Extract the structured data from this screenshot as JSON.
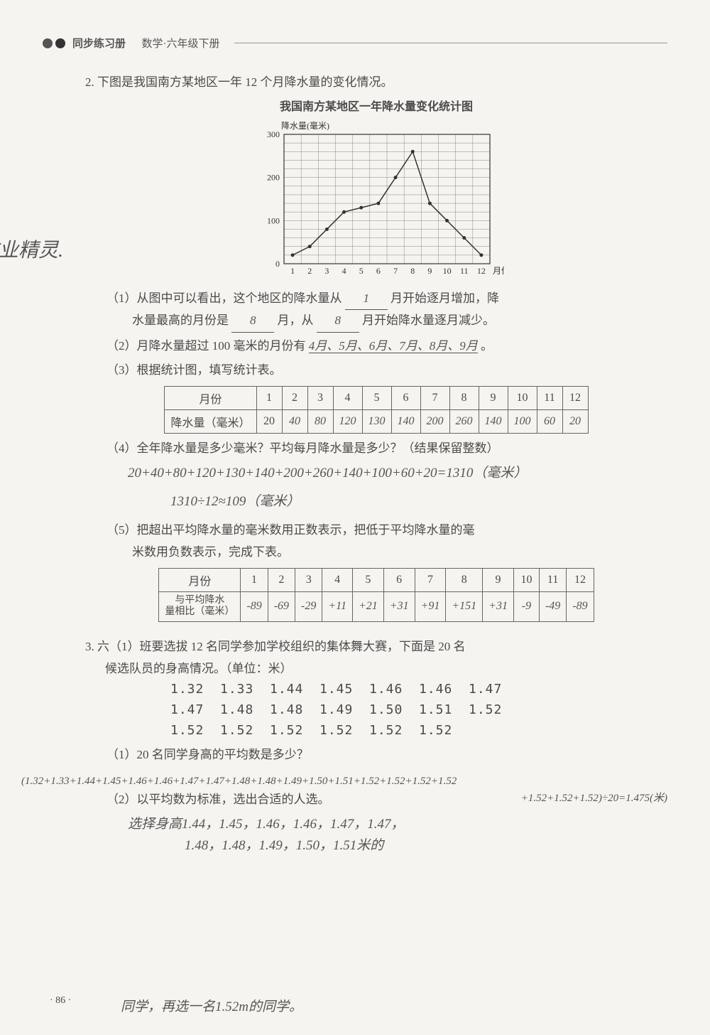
{
  "header": {
    "title_left": "同步练习册",
    "title_right": "数学·六年级下册"
  },
  "watermark_left": "作业精灵.",
  "page_number": "· 86 ·",
  "problem2": {
    "number": "2.",
    "prompt": "下图是我国南方某地区一年 12 个月降水量的变化情况。",
    "chart": {
      "title": "我国南方某地区一年降水量变化统计图",
      "y_label": "降水量(毫米)",
      "x_label": "月份",
      "type": "line",
      "x_categories": [
        "1",
        "2",
        "3",
        "4",
        "5",
        "6",
        "7",
        "8",
        "9",
        "10",
        "11",
        "12"
      ],
      "values": [
        20,
        40,
        80,
        120,
        130,
        140,
        200,
        260,
        140,
        100,
        60,
        20
      ],
      "ylim": [
        0,
        300
      ],
      "ytick_step": 100,
      "minor_grid_step_y": 20,
      "background_color": "#f5f4f0",
      "line_color": "#333333",
      "grid_color": "#888888",
      "axis_fontsize": 12
    },
    "q1": {
      "text_a": "（1）从图中可以看出，这个地区的降水量从",
      "ans_a": "1",
      "text_b": "月开始逐月增加，降",
      "text_c": "水量最高的月份是",
      "ans_c": "8",
      "text_d": "月，从",
      "ans_d": "8",
      "text_e": "月开始降水量逐月减少。"
    },
    "q2": {
      "text": "（2）月降水量超过 100 毫米的月份有",
      "ans": "4月、5月、6月、7月、8月、9月",
      "tail": "。"
    },
    "q3_text": "（3）根据统计图，填写统计表。",
    "table1": {
      "header_label": "月份",
      "row_label": "降水量（毫米）",
      "months": [
        "1",
        "2",
        "3",
        "4",
        "5",
        "6",
        "7",
        "8",
        "9",
        "10",
        "11",
        "12"
      ],
      "printed_first": "20",
      "values": [
        "40",
        "80",
        "120",
        "130",
        "140",
        "200",
        "260",
        "140",
        "100",
        "60",
        "20"
      ]
    },
    "q4": {
      "text": "（4）全年降水量是多少毫米？平均每月降水量是多少？（结果保留整数）",
      "calc1": "20+40+80+120+130+140+200+260+140+100+60+20=1310（毫米）",
      "calc2": "1310÷12≈109（毫米）"
    },
    "q5": {
      "text_a": "（5）把超出平均降水量的毫米数用正数表示，把低于平均降水量的毫",
      "text_b": "米数用负数表示，完成下表。",
      "table": {
        "header_label": "月份",
        "row_label": "与平均降水\n量相比（毫米）",
        "months": [
          "1",
          "2",
          "3",
          "4",
          "5",
          "6",
          "7",
          "8",
          "9",
          "10",
          "11",
          "12"
        ],
        "values": [
          "-89",
          "-69",
          "-29",
          "+11",
          "+21",
          "+31",
          "+91",
          "+151",
          "+31",
          "-9",
          "-49",
          "-89"
        ]
      }
    }
  },
  "problem3": {
    "number": "3.",
    "prompt_a": "六（1）班要选拔 12 名同学参加学校组织的集体舞大赛，下面是 20 名",
    "prompt_b": "候选队员的身高情况。（单位：米）",
    "heights": [
      [
        "1.32",
        "1.33",
        "1.44",
        "1.45",
        "1.46",
        "1.46",
        "1.47"
      ],
      [
        "1.47",
        "1.48",
        "1.48",
        "1.49",
        "1.50",
        "1.51",
        "1.52"
      ],
      [
        "1.52",
        "1.52",
        "1.52",
        "1.52",
        "1.52",
        "1.52"
      ]
    ],
    "q1": {
      "text": "（1）20 名同学身高的平均数是多少？",
      "calc_a": "(1.32+1.33+1.44+1.45+1.46+1.46+1.47+1.47+1.48+1.48+1.49+1.50+1.51+1.52+1.52+1.52+1.52",
      "calc_b": "+1.52+1.52+1.52)÷20=1.475(米)"
    },
    "q2": {
      "text": "（2）以平均数为标准，选出合适的人选。",
      "ans_a": "选择身高1.44，1.45，1.46，1.46，1.47，1.47，",
      "ans_b": "1.48，1.48，1.49，1.50，1.51米的",
      "ans_c": "同学，再选一名1.52m的同学。"
    }
  }
}
